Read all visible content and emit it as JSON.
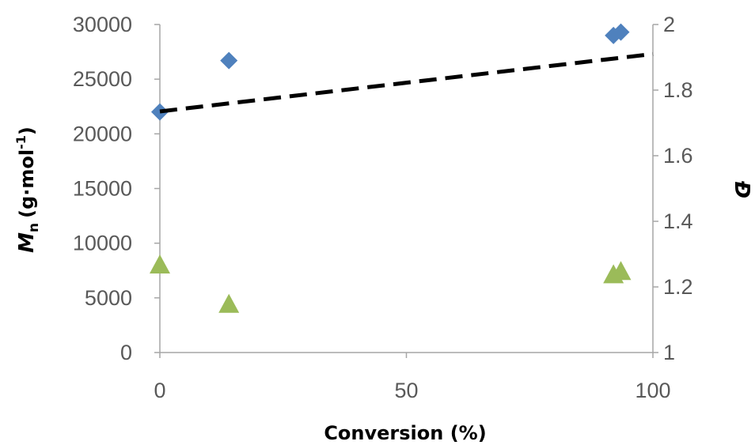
{
  "chart_data": {
    "type": "scatter",
    "title": "",
    "xlabel": "Conversion (%)",
    "ylabel": {
      "symbol": "M",
      "subscript": "n",
      "unit": "(g·mol",
      "superscript": "-1",
      "close": ")"
    },
    "y2label": "Đ",
    "xlim": [
      0,
      100
    ],
    "ylim": [
      0,
      30000
    ],
    "y2lim": [
      1,
      2
    ],
    "xticks": [
      0,
      50,
      100
    ],
    "yticks": [
      0,
      5000,
      10000,
      15000,
      20000,
      25000,
      30000
    ],
    "y2ticks": [
      1,
      1.2,
      1.4,
      1.6,
      1.8,
      2
    ],
    "grid": false,
    "legend": "none",
    "series": [
      {
        "marker": "diamond",
        "axis": "left",
        "color": "#4f81bd",
        "points": [
          [
            0,
            22000
          ],
          [
            14,
            26700
          ],
          [
            92,
            29000
          ],
          [
            93.5,
            29300
          ]
        ]
      },
      {
        "marker": "triangle",
        "axis": "right",
        "color": "#9bbb59",
        "points": [
          [
            0,
            1.27
          ],
          [
            14,
            1.15
          ],
          [
            92,
            1.24
          ],
          [
            93.5,
            1.25
          ]
        ]
      },
      {
        "type": "line",
        "style": "dashed",
        "axis": "right",
        "color": "#000000",
        "points": [
          [
            0,
            1.735
          ],
          [
            100,
            1.91
          ]
        ]
      }
    ]
  }
}
